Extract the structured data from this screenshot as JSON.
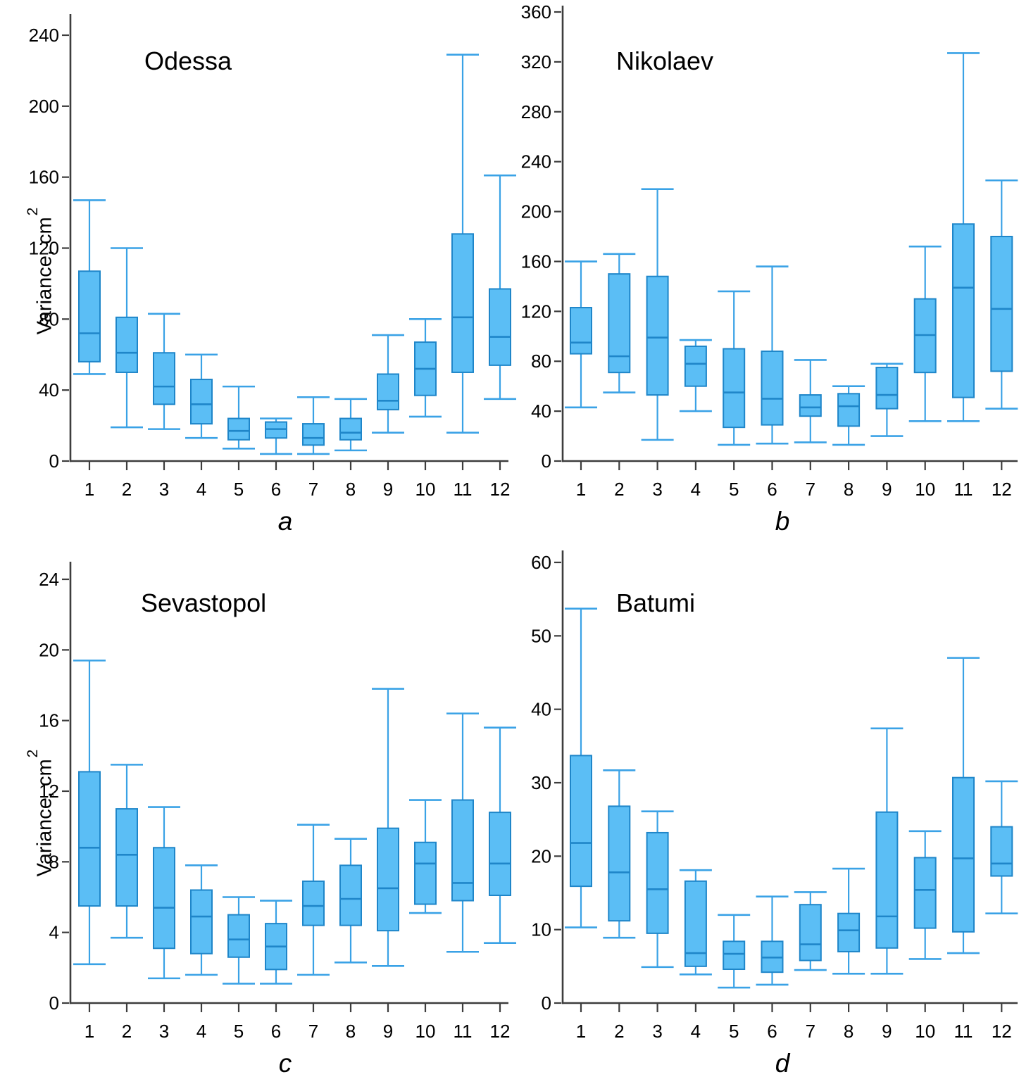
{
  "colors": {
    "box_fill": "#5bbef5",
    "box_border": "#1f86c9",
    "whisker": "#3aa2e6",
    "axis": "#3d3d3d",
    "text": "#000000"
  },
  "chart_data": [
    {
      "type": "box",
      "title": "Odessa",
      "panel_letter": "a",
      "ylabel_main": "Variance, cm",
      "ylabel_sup": "2",
      "ylim": [
        0,
        240
      ],
      "yticks": [
        0,
        40,
        80,
        120,
        160,
        200,
        240
      ],
      "grid": false,
      "categories": [
        "1",
        "2",
        "3",
        "4",
        "5",
        "6",
        "7",
        "8",
        "9",
        "10",
        "11",
        "12"
      ],
      "boxes": [
        {
          "whisker_low": 49,
          "q1": 56,
          "median": 72,
          "q3": 107,
          "whisker_high": 147
        },
        {
          "whisker_low": 19,
          "q1": 50,
          "median": 61,
          "q3": 81,
          "whisker_high": 120
        },
        {
          "whisker_low": 18,
          "q1": 32,
          "median": 42,
          "q3": 61,
          "whisker_high": 83
        },
        {
          "whisker_low": 13,
          "q1": 21,
          "median": 32,
          "q3": 46,
          "whisker_high": 60
        },
        {
          "whisker_low": 7,
          "q1": 12,
          "median": 17,
          "q3": 24,
          "whisker_high": 42
        },
        {
          "whisker_low": 4,
          "q1": 13,
          "median": 18,
          "q3": 22,
          "whisker_high": 24
        },
        {
          "whisker_low": 4,
          "q1": 9,
          "median": 13,
          "q3": 21,
          "whisker_high": 36
        },
        {
          "whisker_low": 6,
          "q1": 12,
          "median": 16,
          "q3": 24,
          "whisker_high": 35
        },
        {
          "whisker_low": 16,
          "q1": 29,
          "median": 34,
          "q3": 49,
          "whisker_high": 71
        },
        {
          "whisker_low": 25,
          "q1": 37,
          "median": 52,
          "q3": 67,
          "whisker_high": 80
        },
        {
          "whisker_low": 16,
          "q1": 50,
          "median": 81,
          "q3": 128,
          "whisker_high": 229
        },
        {
          "whisker_low": 35,
          "q1": 54,
          "median": 70,
          "q3": 97,
          "whisker_high": 161
        }
      ]
    },
    {
      "type": "box",
      "title": "Nikolaev",
      "panel_letter": "b",
      "ylabel_main": "",
      "ylabel_sup": "",
      "ylim": [
        0,
        360
      ],
      "yticks": [
        0,
        40,
        80,
        120,
        160,
        200,
        240,
        280,
        320,
        360
      ],
      "grid": false,
      "categories": [
        "1",
        "2",
        "3",
        "4",
        "5",
        "6",
        "7",
        "8",
        "9",
        "10",
        "11",
        "12"
      ],
      "boxes": [
        {
          "whisker_low": 43,
          "q1": 86,
          "median": 95,
          "q3": 123,
          "whisker_high": 160
        },
        {
          "whisker_low": 55,
          "q1": 71,
          "median": 84,
          "q3": 150,
          "whisker_high": 166
        },
        {
          "whisker_low": 17,
          "q1": 53,
          "median": 99,
          "q3": 148,
          "whisker_high": 218
        },
        {
          "whisker_low": 40,
          "q1": 60,
          "median": 78,
          "q3": 92,
          "whisker_high": 97
        },
        {
          "whisker_low": 13,
          "q1": 27,
          "median": 55,
          "q3": 90,
          "whisker_high": 136
        },
        {
          "whisker_low": 14,
          "q1": 29,
          "median": 50,
          "q3": 88,
          "whisker_high": 156
        },
        {
          "whisker_low": 15,
          "q1": 36,
          "median": 43,
          "q3": 53,
          "whisker_high": 81
        },
        {
          "whisker_low": 13,
          "q1": 28,
          "median": 44,
          "q3": 54,
          "whisker_high": 60
        },
        {
          "whisker_low": 20,
          "q1": 42,
          "median": 53,
          "q3": 75,
          "whisker_high": 78
        },
        {
          "whisker_low": 32,
          "q1": 71,
          "median": 101,
          "q3": 130,
          "whisker_high": 172
        },
        {
          "whisker_low": 32,
          "q1": 51,
          "median": 139,
          "q3": 190,
          "whisker_high": 327
        },
        {
          "whisker_low": 42,
          "q1": 72,
          "median": 122,
          "q3": 180,
          "whisker_high": 225
        }
      ]
    },
    {
      "type": "box",
      "title": "Sevastopol",
      "panel_letter": "c",
      "ylabel_main": "Variance, cm",
      "ylabel_sup": "2",
      "ylim": [
        0,
        24
      ],
      "yticks": [
        0,
        4,
        8,
        12,
        16,
        20,
        24
      ],
      "grid": false,
      "categories": [
        "1",
        "2",
        "3",
        "4",
        "5",
        "6",
        "7",
        "8",
        "9",
        "10",
        "11",
        "12"
      ],
      "boxes": [
        {
          "whisker_low": 2.2,
          "q1": 5.5,
          "median": 8.8,
          "q3": 13.1,
          "whisker_high": 19.4
        },
        {
          "whisker_low": 3.7,
          "q1": 5.5,
          "median": 8.4,
          "q3": 11.0,
          "whisker_high": 13.5
        },
        {
          "whisker_low": 1.4,
          "q1": 3.1,
          "median": 5.4,
          "q3": 8.8,
          "whisker_high": 11.1
        },
        {
          "whisker_low": 1.6,
          "q1": 2.8,
          "median": 4.9,
          "q3": 6.4,
          "whisker_high": 7.8
        },
        {
          "whisker_low": 1.1,
          "q1": 2.6,
          "median": 3.6,
          "q3": 5.0,
          "whisker_high": 6.0
        },
        {
          "whisker_low": 1.1,
          "q1": 1.9,
          "median": 3.2,
          "q3": 4.5,
          "whisker_high": 5.8
        },
        {
          "whisker_low": 1.6,
          "q1": 4.4,
          "median": 5.5,
          "q3": 6.9,
          "whisker_high": 10.1
        },
        {
          "whisker_low": 2.3,
          "q1": 4.4,
          "median": 5.9,
          "q3": 7.8,
          "whisker_high": 9.3
        },
        {
          "whisker_low": 2.1,
          "q1": 4.1,
          "median": 6.5,
          "q3": 9.9,
          "whisker_high": 17.8
        },
        {
          "whisker_low": 5.1,
          "q1": 5.6,
          "median": 7.9,
          "q3": 9.1,
          "whisker_high": 11.5
        },
        {
          "whisker_low": 2.9,
          "q1": 5.8,
          "median": 6.8,
          "q3": 11.5,
          "whisker_high": 16.4
        },
        {
          "whisker_low": 3.4,
          "q1": 6.1,
          "median": 7.9,
          "q3": 10.8,
          "whisker_high": 15.6
        }
      ]
    },
    {
      "type": "box",
      "title": "Batumi",
      "panel_letter": "d",
      "ylabel_main": "",
      "ylabel_sup": "",
      "ylim": [
        0,
        60
      ],
      "yticks": [
        0,
        10,
        20,
        30,
        40,
        50,
        60
      ],
      "grid": false,
      "categories": [
        "1",
        "2",
        "3",
        "4",
        "5",
        "6",
        "7",
        "8",
        "9",
        "10",
        "11",
        "12"
      ],
      "boxes": [
        {
          "whisker_low": 10.3,
          "q1": 15.9,
          "median": 21.8,
          "q3": 33.7,
          "whisker_high": 53.7
        },
        {
          "whisker_low": 8.9,
          "q1": 11.2,
          "median": 17.8,
          "q3": 26.8,
          "whisker_high": 31.7
        },
        {
          "whisker_low": 4.9,
          "q1": 9.5,
          "median": 15.5,
          "q3": 23.2,
          "whisker_high": 26.1
        },
        {
          "whisker_low": 3.9,
          "q1": 5.0,
          "median": 6.8,
          "q3": 16.6,
          "whisker_high": 18.1
        },
        {
          "whisker_low": 2.1,
          "q1": 4.6,
          "median": 6.7,
          "q3": 8.4,
          "whisker_high": 12.0
        },
        {
          "whisker_low": 2.5,
          "q1": 4.2,
          "median": 6.2,
          "q3": 8.4,
          "whisker_high": 14.5
        },
        {
          "whisker_low": 4.5,
          "q1": 5.8,
          "median": 8.0,
          "q3": 13.4,
          "whisker_high": 15.1
        },
        {
          "whisker_low": 4.0,
          "q1": 7.0,
          "median": 9.9,
          "q3": 12.2,
          "whisker_high": 18.3
        },
        {
          "whisker_low": 4.0,
          "q1": 7.5,
          "median": 11.8,
          "q3": 26.0,
          "whisker_high": 37.4
        },
        {
          "whisker_low": 6.0,
          "q1": 10.2,
          "median": 15.4,
          "q3": 19.8,
          "whisker_high": 23.4
        },
        {
          "whisker_low": 6.8,
          "q1": 9.7,
          "median": 19.7,
          "q3": 30.7,
          "whisker_high": 47.0
        },
        {
          "whisker_low": 12.2,
          "q1": 17.3,
          "median": 19.0,
          "q3": 24.0,
          "whisker_high": 30.2
        }
      ]
    }
  ]
}
